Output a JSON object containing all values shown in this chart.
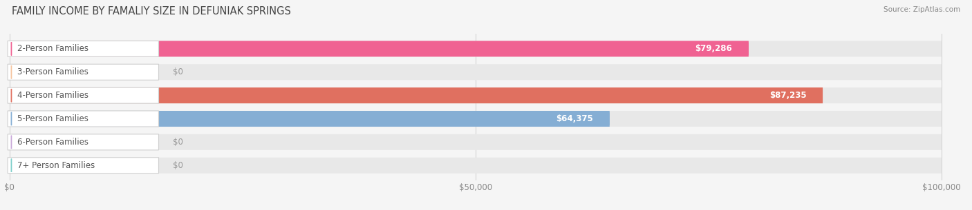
{
  "title": "FAMILY INCOME BY FAMALIY SIZE IN DEFUNIAK SPRINGS",
  "source": "Source: ZipAtlas.com",
  "categories": [
    "2-Person Families",
    "3-Person Families",
    "4-Person Families",
    "5-Person Families",
    "6-Person Families",
    "7+ Person Families"
  ],
  "values": [
    79286,
    0,
    87235,
    64375,
    0,
    0
  ],
  "bar_colors": [
    "#f06292",
    "#f5c49e",
    "#e07060",
    "#85aed4",
    "#c8a8d8",
    "#7ecfca"
  ],
  "xlim_max": 100000,
  "xticks": [
    0,
    50000,
    100000
  ],
  "xtick_labels": [
    "$0",
    "$50,000",
    "$100,000"
  ],
  "background_color": "#f5f5f5",
  "bar_bg_color": "#e8e8e8",
  "label_bg_color": "#ffffff",
  "title_fontsize": 10.5,
  "tick_fontsize": 8.5,
  "label_fontsize": 8.5,
  "value_fontsize": 8.5,
  "fig_width": 14.06,
  "fig_height": 3.05
}
